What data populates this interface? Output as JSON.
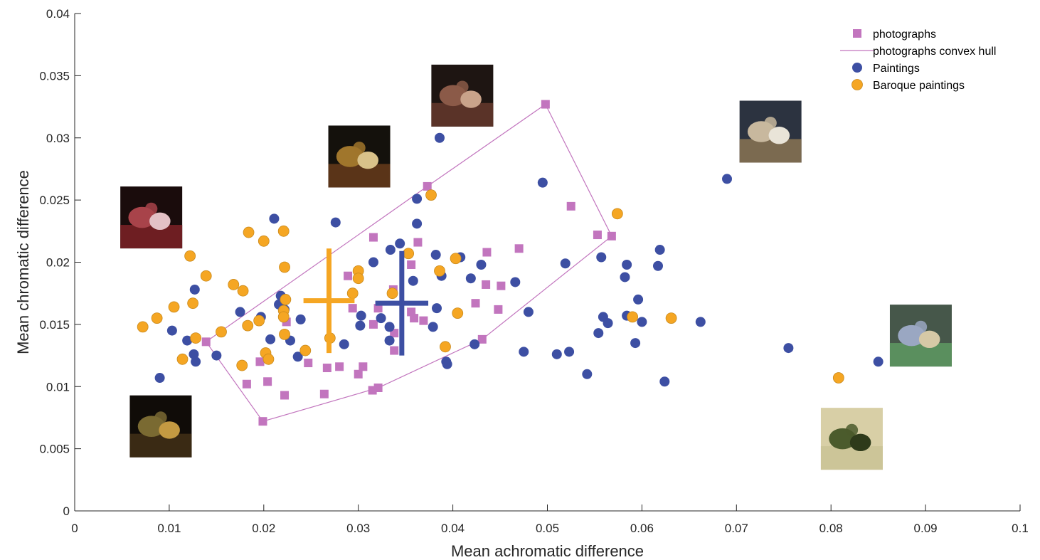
{
  "colors": {
    "photographs": "#c275be",
    "paintings": "#3d4fa3",
    "baroque": "#f5a623",
    "baroque_edge": "#c98a1e",
    "axis": "#262626"
  },
  "chart_data": {
    "type": "scatter",
    "title": "",
    "xlabel": "Mean achromatic difference",
    "ylabel": "Mean chromatic difference",
    "xlim": [
      0,
      0.1
    ],
    "ylim": [
      0,
      0.04
    ],
    "grid": false,
    "legend_position": "top-right",
    "xticks": [
      {
        "value": 0,
        "label": "0"
      },
      {
        "value": 0.01,
        "label": "0.01"
      },
      {
        "value": 0.02,
        "label": "0.02"
      },
      {
        "value": 0.03,
        "label": "0.03"
      },
      {
        "value": 0.04,
        "label": "0.04"
      },
      {
        "value": 0.05,
        "label": "0.05"
      },
      {
        "value": 0.06,
        "label": "0.06"
      },
      {
        "value": 0.07,
        "label": "0.07"
      },
      {
        "value": 0.08,
        "label": "0.08"
      },
      {
        "value": 0.09,
        "label": "0.09"
      },
      {
        "value": 0.1,
        "label": "0.1"
      }
    ],
    "yticks": [
      {
        "value": 0,
        "label": "0"
      },
      {
        "value": 0.005,
        "label": "0.005"
      },
      {
        "value": 0.01,
        "label": "0.01"
      },
      {
        "value": 0.015,
        "label": "0.015"
      },
      {
        "value": 0.02,
        "label": "0.02"
      },
      {
        "value": 0.025,
        "label": "0.025"
      },
      {
        "value": 0.03,
        "label": "0.03"
      },
      {
        "value": 0.035,
        "label": "0.035"
      },
      {
        "value": 0.04,
        "label": "0.04"
      }
    ],
    "legend": [
      {
        "label": "photographs",
        "marker": "square"
      },
      {
        "label": "photographs convex hull",
        "marker": "line"
      },
      {
        "label": "Paintings",
        "marker": "circle"
      },
      {
        "label": "Baroque paintings",
        "marker": "circle"
      }
    ],
    "series": [
      {
        "name": "photographs",
        "marker": "square",
        "points": [
          [
            0.0498,
            0.0327
          ],
          [
            0.0373,
            0.0261
          ],
          [
            0.0525,
            0.0245
          ],
          [
            0.0553,
            0.0222
          ],
          [
            0.0568,
            0.0221
          ],
          [
            0.0316,
            0.022
          ],
          [
            0.0363,
            0.0216
          ],
          [
            0.047,
            0.0211
          ],
          [
            0.0436,
            0.0208
          ],
          [
            0.0356,
            0.0198
          ],
          [
            0.0289,
            0.0189
          ],
          [
            0.0435,
            0.0182
          ],
          [
            0.0451,
            0.0181
          ],
          [
            0.0337,
            0.0178
          ],
          [
            0.0424,
            0.0167
          ],
          [
            0.0448,
            0.0162
          ],
          [
            0.0294,
            0.0163
          ],
          [
            0.0321,
            0.0163
          ],
          [
            0.0356,
            0.016
          ],
          [
            0.0359,
            0.0155
          ],
          [
            0.0369,
            0.0153
          ],
          [
            0.0316,
            0.015
          ],
          [
            0.0224,
            0.0152
          ],
          [
            0.0338,
            0.0143
          ],
          [
            0.0139,
            0.0136
          ],
          [
            0.0431,
            0.0138
          ],
          [
            0.0338,
            0.0129
          ],
          [
            0.0196,
            0.012
          ],
          [
            0.0247,
            0.0119
          ],
          [
            0.0267,
            0.0115
          ],
          [
            0.028,
            0.0116
          ],
          [
            0.0305,
            0.0116
          ],
          [
            0.03,
            0.011
          ],
          [
            0.0182,
            0.0102
          ],
          [
            0.0204,
            0.0104
          ],
          [
            0.0321,
            0.0099
          ],
          [
            0.0315,
            0.0097
          ],
          [
            0.0264,
            0.0094
          ],
          [
            0.0222,
            0.0093
          ],
          [
            0.0199,
            0.0072
          ]
        ]
      },
      {
        "name": "photographs convex hull",
        "marker": "line",
        "points": [
          [
            0.0498,
            0.0327
          ],
          [
            0.0568,
            0.0221
          ],
          [
            0.0431,
            0.0138
          ],
          [
            0.0321,
            0.0099
          ],
          [
            0.0199,
            0.0072
          ],
          [
            0.0139,
            0.0136
          ],
          [
            0.0373,
            0.0261
          ],
          [
            0.0498,
            0.0327
          ]
        ]
      },
      {
        "name": "Paintings",
        "marker": "circle",
        "points": [
          [
            0.0386,
            0.03
          ],
          [
            0.069,
            0.0267
          ],
          [
            0.0495,
            0.0264
          ],
          [
            0.0362,
            0.0251
          ],
          [
            0.0211,
            0.0235
          ],
          [
            0.0276,
            0.0232
          ],
          [
            0.0362,
            0.0231
          ],
          [
            0.0344,
            0.0215
          ],
          [
            0.0334,
            0.021
          ],
          [
            0.0619,
            0.021
          ],
          [
            0.0408,
            0.0204
          ],
          [
            0.0557,
            0.0204
          ],
          [
            0.0382,
            0.0206
          ],
          [
            0.0316,
            0.02
          ],
          [
            0.0519,
            0.0199
          ],
          [
            0.043,
            0.0198
          ],
          [
            0.0584,
            0.0198
          ],
          [
            0.0617,
            0.0197
          ],
          [
            0.0358,
            0.0185
          ],
          [
            0.0419,
            0.0187
          ],
          [
            0.0582,
            0.0188
          ],
          [
            0.0388,
            0.0189
          ],
          [
            0.0466,
            0.0184
          ],
          [
            0.0127,
            0.0178
          ],
          [
            0.0218,
            0.0173
          ],
          [
            0.0596,
            0.017
          ],
          [
            0.0216,
            0.0166
          ],
          [
            0.0383,
            0.0163
          ],
          [
            0.0222,
            0.0162
          ],
          [
            0.0175,
            0.016
          ],
          [
            0.048,
            0.016
          ],
          [
            0.0584,
            0.0157
          ],
          [
            0.0303,
            0.0157
          ],
          [
            0.0197,
            0.0156
          ],
          [
            0.0559,
            0.0156
          ],
          [
            0.0324,
            0.0155
          ],
          [
            0.0239,
            0.0154
          ],
          [
            0.06,
            0.0152
          ],
          [
            0.0662,
            0.0152
          ],
          [
            0.0564,
            0.0151
          ],
          [
            0.0302,
            0.0149
          ],
          [
            0.0379,
            0.0148
          ],
          [
            0.0333,
            0.0148
          ],
          [
            0.0103,
            0.0145
          ],
          [
            0.0554,
            0.0143
          ],
          [
            0.0207,
            0.0138
          ],
          [
            0.0228,
            0.0137
          ],
          [
            0.0119,
            0.0137
          ],
          [
            0.0333,
            0.0137
          ],
          [
            0.0593,
            0.0135
          ],
          [
            0.0285,
            0.0134
          ],
          [
            0.0423,
            0.0134
          ],
          [
            0.0755,
            0.0131
          ],
          [
            0.0475,
            0.0128
          ],
          [
            0.0523,
            0.0128
          ],
          [
            0.0126,
            0.0126
          ],
          [
            0.051,
            0.0126
          ],
          [
            0.015,
            0.0125
          ],
          [
            0.0236,
            0.0124
          ],
          [
            0.0128,
            0.012
          ],
          [
            0.085,
            0.012
          ],
          [
            0.0393,
            0.012
          ],
          [
            0.0394,
            0.0118
          ],
          [
            0.0542,
            0.011
          ],
          [
            0.009,
            0.0107
          ],
          [
            0.0624,
            0.0104
          ]
        ]
      },
      {
        "name": "Baroque paintings",
        "marker": "circle",
        "points": [
          [
            0.0377,
            0.0254
          ],
          [
            0.0574,
            0.0239
          ],
          [
            0.0184,
            0.0224
          ],
          [
            0.0221,
            0.0225
          ],
          [
            0.02,
            0.0217
          ],
          [
            0.0353,
            0.0207
          ],
          [
            0.0122,
            0.0205
          ],
          [
            0.0403,
            0.0203
          ],
          [
            0.0222,
            0.0196
          ],
          [
            0.03,
            0.0193
          ],
          [
            0.0386,
            0.0193
          ],
          [
            0.0139,
            0.0189
          ],
          [
            0.03,
            0.0187
          ],
          [
            0.0168,
            0.0182
          ],
          [
            0.0178,
            0.0177
          ],
          [
            0.0294,
            0.0175
          ],
          [
            0.0336,
            0.0175
          ],
          [
            0.0223,
            0.017
          ],
          [
            0.0125,
            0.0167
          ],
          [
            0.0105,
            0.0164
          ],
          [
            0.0221,
            0.0161
          ],
          [
            0.0405,
            0.0159
          ],
          [
            0.0221,
            0.0156
          ],
          [
            0.059,
            0.0156
          ],
          [
            0.0631,
            0.0155
          ],
          [
            0.0087,
            0.0155
          ],
          [
            0.0195,
            0.0153
          ],
          [
            0.0183,
            0.0149
          ],
          [
            0.0072,
            0.0148
          ],
          [
            0.0155,
            0.0144
          ],
          [
            0.0222,
            0.0142
          ],
          [
            0.0128,
            0.0139
          ],
          [
            0.027,
            0.0139
          ],
          [
            0.0392,
            0.0132
          ],
          [
            0.0244,
            0.0129
          ],
          [
            0.0202,
            0.0127
          ],
          [
            0.0205,
            0.0122
          ],
          [
            0.0114,
            0.0122
          ],
          [
            0.0177,
            0.0117
          ],
          [
            0.0808,
            0.0107
          ]
        ]
      }
    ],
    "centroids": [
      {
        "name": "Baroque paintings",
        "x": 0.0269,
        "y": 0.0169,
        "dx": 0.0027,
        "dy": 0.0042
      },
      {
        "name": "Paintings",
        "x": 0.0346,
        "y": 0.0167,
        "dx": 0.0028,
        "dy": 0.0042
      }
    ],
    "thumbnails": [
      {
        "name": "thumbnail-pomegranates",
        "x": 0.0081,
        "y": 0.0236,
        "palette": [
          "#1a0c0c",
          "#6e1e22",
          "#a8434a",
          "#e3c1c6"
        ]
      },
      {
        "name": "thumbnail-baroque-table",
        "x": 0.0301,
        "y": 0.0285,
        "palette": [
          "#14110c",
          "#5a3418",
          "#a0762c",
          "#d9c28a"
        ]
      },
      {
        "name": "thumbnail-dark-fruit",
        "x": 0.041,
        "y": 0.0334,
        "palette": [
          "#1e1512",
          "#5a3328",
          "#8b5a48",
          "#c9a38a"
        ]
      },
      {
        "name": "thumbnail-cezanne-table",
        "x": 0.0736,
        "y": 0.0305,
        "palette": [
          "#2c3340",
          "#7b6a50",
          "#c8b89e",
          "#e9e4d8"
        ]
      },
      {
        "name": "thumbnail-cezanne-melon",
        "x": 0.0895,
        "y": 0.0141,
        "palette": [
          "#46574a",
          "#5a8f5e",
          "#9aa7c2",
          "#d6c9a6"
        ]
      },
      {
        "name": "thumbnail-fruit-basket",
        "x": 0.0822,
        "y": 0.0058,
        "palette": [
          "#d8cfa6",
          "#ccc598",
          "#4b5b2c",
          "#2e3a1a"
        ]
      },
      {
        "name": "thumbnail-melon-still-life",
        "x": 0.0091,
        "y": 0.0068,
        "palette": [
          "#100c08",
          "#3a2a14",
          "#7a6a32",
          "#c49a42"
        ]
      }
    ]
  }
}
